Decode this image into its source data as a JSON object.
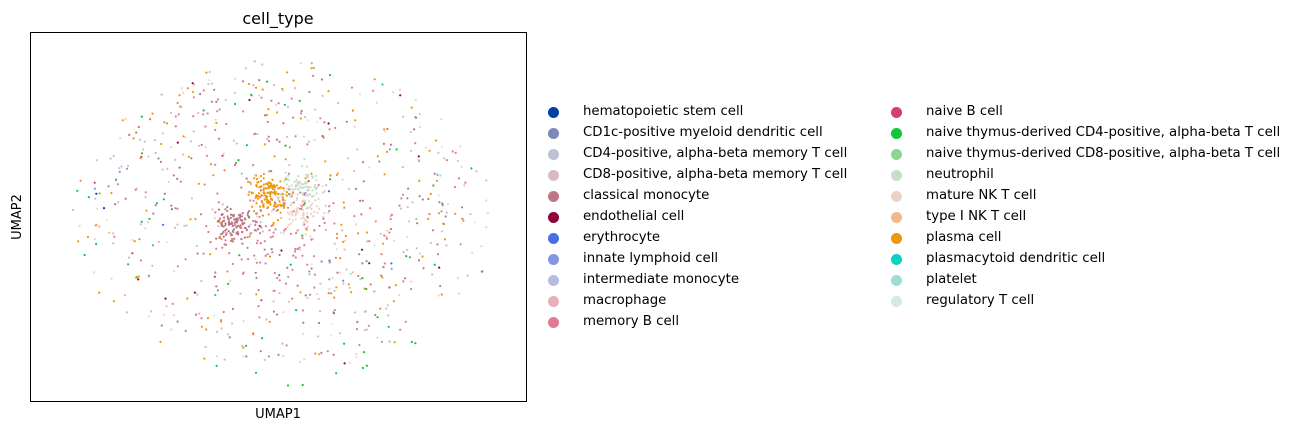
{
  "chart_data": {
    "type": "scatter",
    "title": "cell_type",
    "xlabel": "UMAP1",
    "ylabel": "UMAP2",
    "grid": false,
    "axis_ticks": false,
    "legend_placement": "right, two columns",
    "series": [
      {
        "name": "hematopoietic stem cell",
        "color": "#023fa5",
        "approx_points": 4,
        "clusters": [
          [
            -6.5,
            0.5,
            0.4
          ],
          [
            3.2,
            -1.8,
            0.4
          ]
        ]
      },
      {
        "name": "CD1c-positive myeloid dendritic cell",
        "color": "#7d87b9",
        "approx_points": 6,
        "clusters": [
          [
            -3.5,
            2.0,
            0.8
          ],
          [
            4.0,
            -2.0,
            0.8
          ]
        ]
      },
      {
        "name": "CD4-positive, alpha-beta memory T cell",
        "color": "#bec1d4",
        "approx_points": 30,
        "clusters": [
          [
            0,
            0,
            6.0
          ]
        ]
      },
      {
        "name": "CD8-positive, alpha-beta memory T cell",
        "color": "#d6bcc0",
        "approx_points": 60,
        "clusters": [
          [
            0.3,
            0.2,
            6.0
          ]
        ]
      },
      {
        "name": "classical monocyte",
        "color": "#bb7784",
        "approx_points": 230,
        "clusters": [
          [
            -1.6,
            -0.3,
            0.35
          ],
          [
            0.2,
            0.0,
            5.5
          ]
        ]
      },
      {
        "name": "endothelial cell",
        "color": "#8e063b",
        "approx_points": 12,
        "clusters": [
          [
            0,
            0,
            6.0
          ]
        ]
      },
      {
        "name": "erythrocyte",
        "color": "#4a6fe3",
        "approx_points": 6,
        "clusters": [
          [
            -2.5,
            1.5,
            2.5
          ],
          [
            2.8,
            -2.2,
            1.5
          ]
        ]
      },
      {
        "name": "innate lymphoid cell",
        "color": "#8595e1",
        "approx_points": 8,
        "clusters": [
          [
            0,
            0,
            6.0
          ]
        ]
      },
      {
        "name": "intermediate monocyte",
        "color": "#b5bbe3",
        "approx_points": 12,
        "clusters": [
          [
            0,
            0,
            6.0
          ]
        ]
      },
      {
        "name": "macrophage",
        "color": "#e6afb9",
        "approx_points": 50,
        "clusters": [
          [
            0.5,
            0.0,
            6.0
          ]
        ]
      },
      {
        "name": "memory B cell",
        "color": "#e07b91",
        "approx_points": 220,
        "clusters": [
          [
            -0.3,
            -0.5,
            1.1
          ],
          [
            0.5,
            0.0,
            5.5
          ]
        ]
      },
      {
        "name": "naive B cell",
        "color": "#d33f6a",
        "approx_points": 12,
        "clusters": [
          [
            0,
            0,
            6.0
          ]
        ]
      },
      {
        "name": "naive thymus-derived CD4-positive, alpha-beta T cell",
        "color": "#11c638",
        "approx_points": 60,
        "clusters": [
          [
            0,
            0,
            6.5
          ]
        ]
      },
      {
        "name": "naive thymus-derived CD8-positive, alpha-beta T cell",
        "color": "#8dd593",
        "approx_points": 6,
        "clusters": [
          [
            0,
            0,
            6.0
          ]
        ]
      },
      {
        "name": "neutrophil",
        "color": "#c6dec7",
        "approx_points": 90,
        "clusters": [
          [
            0.85,
            1.1,
            0.35
          ]
        ]
      },
      {
        "name": "mature NK T cell",
        "color": "#ead3c6",
        "approx_points": 160,
        "clusters": [
          [
            0.8,
            0.2,
            0.5
          ],
          [
            0.2,
            0.0,
            6.0
          ]
        ]
      },
      {
        "name": "type I NK T cell",
        "color": "#f0b98d",
        "approx_points": 10,
        "clusters": [
          [
            0,
            0,
            6.0
          ]
        ]
      },
      {
        "name": "plasma cell",
        "color": "#ef9708",
        "approx_points": 250,
        "clusters": [
          [
            -0.3,
            0.8,
            0.35
          ],
          [
            0.0,
            0.0,
            6.0
          ]
        ]
      },
      {
        "name": "plasmacytoid dendritic cell",
        "color": "#0fcfc0",
        "approx_points": 4,
        "clusters": [
          [
            0,
            0,
            6.0
          ]
        ]
      },
      {
        "name": "platelet",
        "color": "#9cded6",
        "approx_points": 10,
        "clusters": [
          [
            0,
            0,
            6.0
          ]
        ]
      },
      {
        "name": "regulatory T cell",
        "color": "#d5eae7",
        "approx_points": 20,
        "clusters": [
          [
            0,
            0,
            6.0
          ]
        ]
      }
    ]
  }
}
